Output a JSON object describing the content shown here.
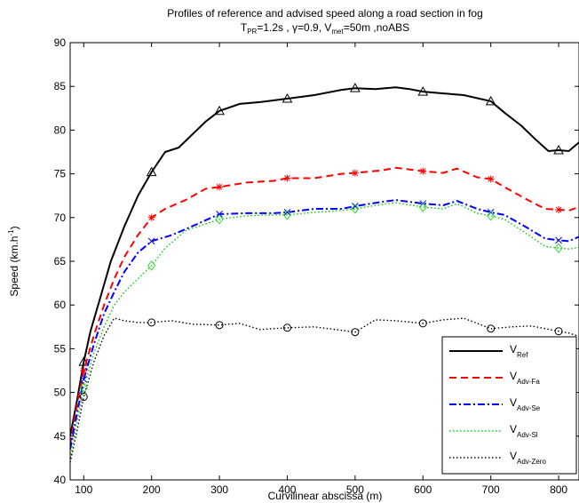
{
  "title": {
    "line1": "Profiles of reference and advised speed along a road section in fog",
    "l2_a": "T",
    "l2_a_sub": "PR",
    "l2_b": "=1.2s , γ=0.9, V",
    "l2_b_sub": "met",
    "l2_c": "=50m ,noABS"
  },
  "axes": {
    "xlabel": "Curvilinear abscissa (m)",
    "ylabel_main": "Speed (km.h",
    "ylabel_sup": "-1",
    "ylabel_end": ")"
  },
  "legend": [
    {
      "main": "V",
      "sub": "Ref"
    },
    {
      "main": "V",
      "sub": "Adv-Fa"
    },
    {
      "main": "V",
      "sub": "Adv-Se"
    },
    {
      "main": "V",
      "sub": "Adv-Sl"
    },
    {
      "main": "V",
      "sub": "Adv-Zero"
    }
  ],
  "chart_data": {
    "type": "line",
    "xlim": [
      80,
      830
    ],
    "ylim": [
      40,
      90
    ],
    "xticks": [
      100,
      200,
      300,
      400,
      500,
      600,
      700,
      800
    ],
    "yticks": [
      40,
      45,
      50,
      55,
      60,
      65,
      70,
      75,
      80,
      85,
      90
    ],
    "grid": false,
    "legend_position": "bottom-right",
    "series": [
      {
        "name": "V_Ref",
        "color": "#000000",
        "style": "solid",
        "marker": "triangle",
        "points": [
          [
            80,
            45
          ],
          [
            90,
            49
          ],
          [
            100,
            53.5
          ],
          [
            110,
            57
          ],
          [
            125,
            61
          ],
          [
            140,
            65
          ],
          [
            160,
            69
          ],
          [
            180,
            72.5
          ],
          [
            200,
            75.2
          ],
          [
            220,
            77.5
          ],
          [
            240,
            78
          ],
          [
            260,
            79.5
          ],
          [
            280,
            81
          ],
          [
            300,
            82.2
          ],
          [
            330,
            83
          ],
          [
            360,
            83.2
          ],
          [
            400,
            83.6
          ],
          [
            440,
            84
          ],
          [
            480,
            84.6
          ],
          [
            500,
            84.8
          ],
          [
            530,
            84.7
          ],
          [
            560,
            84.9
          ],
          [
            580,
            84.7
          ],
          [
            600,
            84.4
          ],
          [
            630,
            84.2
          ],
          [
            660,
            84
          ],
          [
            700,
            83.3
          ],
          [
            720,
            82
          ],
          [
            745,
            80.5
          ],
          [
            765,
            79
          ],
          [
            785,
            77.6
          ],
          [
            800,
            77.7
          ],
          [
            815,
            77.6
          ],
          [
            830,
            78.6
          ]
        ],
        "markers_x": [
          100,
          200,
          300,
          400,
          500,
          600,
          700,
          800
        ]
      },
      {
        "name": "V_Adv-Fa",
        "color": "#ff0000",
        "style": "dashed",
        "marker": "star",
        "points": [
          [
            80,
            44
          ],
          [
            90,
            48.5
          ],
          [
            100,
            52.5
          ],
          [
            115,
            56.5
          ],
          [
            130,
            60
          ],
          [
            145,
            63
          ],
          [
            160,
            65.5
          ],
          [
            180,
            68
          ],
          [
            200,
            70
          ],
          [
            220,
            71
          ],
          [
            250,
            72
          ],
          [
            280,
            73.3
          ],
          [
            300,
            73.5
          ],
          [
            340,
            74
          ],
          [
            380,
            74.2
          ],
          [
            400,
            74.5
          ],
          [
            440,
            74.5
          ],
          [
            480,
            75
          ],
          [
            500,
            75.1
          ],
          [
            540,
            75.4
          ],
          [
            560,
            75.7
          ],
          [
            600,
            75.3
          ],
          [
            630,
            75.1
          ],
          [
            650,
            75.6
          ],
          [
            680,
            74.6
          ],
          [
            700,
            74.4
          ],
          [
            720,
            73.5
          ],
          [
            750,
            72.2
          ],
          [
            780,
            71
          ],
          [
            800,
            70.9
          ],
          [
            815,
            70.8
          ],
          [
            830,
            71.2
          ]
        ],
        "markers_x": [
          100,
          200,
          300,
          400,
          500,
          600,
          700,
          800
        ]
      },
      {
        "name": "V_Adv-Se",
        "color": "#0000ff",
        "style": "dashdot",
        "marker": "x",
        "points": [
          [
            80,
            43.5
          ],
          [
            90,
            47.5
          ],
          [
            100,
            51.5
          ],
          [
            115,
            55.5
          ],
          [
            130,
            59
          ],
          [
            145,
            61.5
          ],
          [
            160,
            63.8
          ],
          [
            180,
            66
          ],
          [
            200,
            67.3
          ],
          [
            230,
            68
          ],
          [
            260,
            69
          ],
          [
            300,
            70.4
          ],
          [
            340,
            70.5
          ],
          [
            380,
            70.5
          ],
          [
            400,
            70.6
          ],
          [
            440,
            71
          ],
          [
            480,
            71
          ],
          [
            500,
            71.3
          ],
          [
            540,
            71.8
          ],
          [
            560,
            72
          ],
          [
            600,
            71.6
          ],
          [
            630,
            71.4
          ],
          [
            650,
            71.9
          ],
          [
            680,
            71
          ],
          [
            700,
            70.6
          ],
          [
            720,
            70.3
          ],
          [
            750,
            69
          ],
          [
            780,
            67.6
          ],
          [
            800,
            67.4
          ],
          [
            815,
            67.3
          ],
          [
            830,
            67.8
          ]
        ],
        "markers_x": [
          100,
          200,
          300,
          400,
          500,
          600,
          700,
          800
        ]
      },
      {
        "name": "V_Adv-Sl",
        "color": "#00cc00",
        "style": "dotted",
        "marker": "diamond",
        "points": [
          [
            80,
            42.5
          ],
          [
            90,
            46.5
          ],
          [
            100,
            50.5
          ],
          [
            115,
            54.5
          ],
          [
            130,
            57.5
          ],
          [
            145,
            60
          ],
          [
            160,
            61.5
          ],
          [
            180,
            63
          ],
          [
            200,
            64.5
          ],
          [
            220,
            66.5
          ],
          [
            250,
            68.5
          ],
          [
            300,
            69.8
          ],
          [
            340,
            70.2
          ],
          [
            380,
            70.3
          ],
          [
            400,
            70.3
          ],
          [
            440,
            70.6
          ],
          [
            480,
            70.8
          ],
          [
            500,
            71
          ],
          [
            540,
            71.5
          ],
          [
            560,
            71.7
          ],
          [
            600,
            71.2
          ],
          [
            630,
            71
          ],
          [
            650,
            71.6
          ],
          [
            680,
            70.5
          ],
          [
            700,
            70.2
          ],
          [
            720,
            69.8
          ],
          [
            750,
            68.3
          ],
          [
            780,
            66.7
          ],
          [
            800,
            66.5
          ],
          [
            815,
            66.4
          ],
          [
            830,
            66.6
          ]
        ],
        "markers_x": [
          100,
          200,
          300,
          400,
          500,
          600,
          700,
          800
        ]
      },
      {
        "name": "V_Adv-Zero",
        "color": "#000000",
        "style": "dotted",
        "marker": "circle",
        "points": [
          [
            80,
            42
          ],
          [
            90,
            45.5
          ],
          [
            100,
            49.5
          ],
          [
            115,
            53.5
          ],
          [
            130,
            56.5
          ],
          [
            145,
            58.5
          ],
          [
            160,
            58.2
          ],
          [
            180,
            58
          ],
          [
            200,
            58
          ],
          [
            230,
            58.2
          ],
          [
            260,
            57.8
          ],
          [
            300,
            57.7
          ],
          [
            330,
            57.9
          ],
          [
            360,
            57.2
          ],
          [
            400,
            57.4
          ],
          [
            440,
            57.5
          ],
          [
            480,
            57.1
          ],
          [
            500,
            56.9
          ],
          [
            530,
            58.3
          ],
          [
            560,
            58.2
          ],
          [
            600,
            57.9
          ],
          [
            630,
            58.3
          ],
          [
            660,
            58.5
          ],
          [
            690,
            57.6
          ],
          [
            700,
            57.3
          ],
          [
            730,
            57.5
          ],
          [
            760,
            57.6
          ],
          [
            800,
            57
          ],
          [
            815,
            56.8
          ],
          [
            830,
            56.4
          ]
        ],
        "markers_x": [
          100,
          200,
          300,
          400,
          500,
          600,
          700,
          800
        ]
      }
    ]
  }
}
